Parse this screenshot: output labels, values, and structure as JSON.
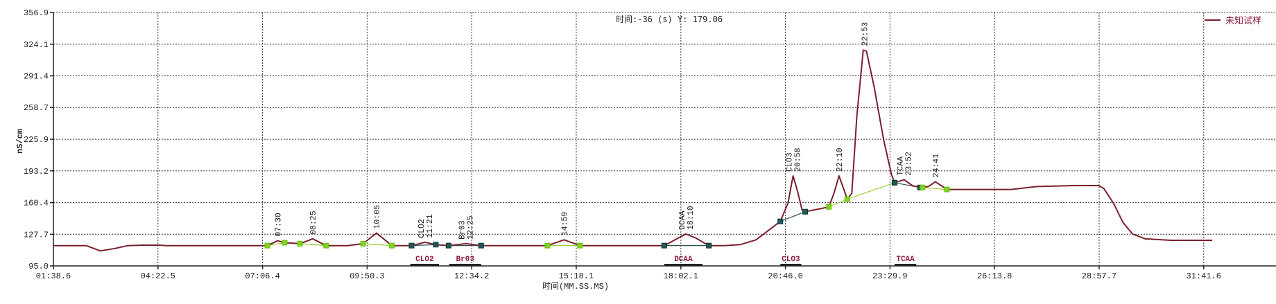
{
  "chart_data": {
    "type": "line",
    "title": "",
    "cursor_readout": "时间:-36 (s) Y: 179.06",
    "xlabel": "时间(MM.SS.MS)",
    "ylabel": "nS/cm",
    "x_unit": "seconds (shown as MM:SS.S)",
    "xlim": [
      98.6,
      2000
    ],
    "ylim": [
      95.0,
      356.9
    ],
    "x_ticks": [
      "01:38.6",
      "04:22.5",
      "07:06.4",
      "09:50.3",
      "12:34.2",
      "15:18.1",
      "18:02.1",
      "20:46.0",
      "23:29.9",
      "26:13.8",
      "28:57.7",
      "31:41.6"
    ],
    "y_ticks": [
      "95.0",
      "127.7",
      "160.4",
      "193.2",
      "225.9",
      "258.7",
      "291.4",
      "324.1",
      "356.9"
    ],
    "grid": true,
    "legend_position": "top-right",
    "series": [
      {
        "name": "未知试样",
        "color": "#7a1f2b",
        "points": [
          [
            98.6,
            116
          ],
          [
            150,
            116
          ],
          [
            172,
            110.5
          ],
          [
            195,
            113
          ],
          [
            215,
            116
          ],
          [
            240,
            116.5
          ],
          [
            265,
            116.5
          ],
          [
            275,
            116
          ],
          [
            434,
            116
          ],
          [
            450,
            121
          ],
          [
            461,
            119
          ],
          [
            475,
            118.5
          ],
          [
            485,
            118
          ],
          [
            505,
            123
          ],
          [
            526,
            116
          ],
          [
            560,
            116
          ],
          [
            584,
            118
          ],
          [
            605,
            129
          ],
          [
            629,
            116
          ],
          [
            660,
            116
          ],
          [
            681,
            119.5
          ],
          [
            698,
            117
          ],
          [
            718,
            116
          ],
          [
            745,
            118
          ],
          [
            769,
            116
          ],
          [
            873,
            116
          ],
          [
            899,
            122
          ],
          [
            924,
            116
          ],
          [
            1056,
            116
          ],
          [
            1073,
            122
          ],
          [
            1090,
            128
          ],
          [
            1105,
            124
          ],
          [
            1126,
            116
          ],
          [
            1150,
            116
          ],
          [
            1175,
            117
          ],
          [
            1200,
            122
          ],
          [
            1220,
            132
          ],
          [
            1238,
            141
          ],
          [
            1250,
            160
          ],
          [
            1258,
            188
          ],
          [
            1265,
            172
          ],
          [
            1272,
            153
          ],
          [
            1277,
            151
          ],
          [
            1300,
            154
          ],
          [
            1314,
            156
          ],
          [
            1322,
            170
          ],
          [
            1330,
            188
          ],
          [
            1337,
            175
          ],
          [
            1343,
            164
          ],
          [
            1350,
            170
          ],
          [
            1358,
            250
          ],
          [
            1368,
            318
          ],
          [
            1373,
            317
          ],
          [
            1385,
            280
          ],
          [
            1400,
            225
          ],
          [
            1412,
            190
          ],
          [
            1417,
            181
          ],
          [
            1432,
            184
          ],
          [
            1445,
            178
          ],
          [
            1457,
            176
          ],
          [
            1470,
            177
          ],
          [
            1481,
            182
          ],
          [
            1499,
            174
          ],
          [
            1600,
            174
          ],
          [
            1640,
            177
          ],
          [
            1700,
            178
          ],
          [
            1737,
            178
          ],
          [
            1745,
            175
          ],
          [
            1760,
            160
          ],
          [
            1775,
            140
          ],
          [
            1790,
            128
          ],
          [
            1810,
            123
          ],
          [
            1850,
            121.5
          ],
          [
            1915,
            121.5
          ]
        ]
      }
    ],
    "baselines": [
      {
        "from": [
          434,
          116
        ],
        "to": [
          461,
          119
        ],
        "marker": "green"
      },
      {
        "from": [
          485,
          118
        ],
        "to": [
          526,
          116
        ],
        "marker": "green"
      },
      {
        "from": [
          584,
          118
        ],
        "to": [
          629,
          116
        ],
        "marker": "green"
      },
      {
        "from": [
          660,
          116
        ],
        "to": [
          698,
          117
        ],
        "marker": "teal"
      },
      {
        "from": [
          718,
          116
        ],
        "to": [
          769,
          116
        ],
        "marker": "teal"
      },
      {
        "from": [
          873,
          116
        ],
        "to": [
          924,
          116
        ],
        "marker": "green"
      },
      {
        "from": [
          1056,
          116
        ],
        "to": [
          1126,
          116
        ],
        "marker": "teal"
      },
      {
        "from": [
          1238,
          141
        ],
        "to": [
          1277,
          151
        ],
        "marker": "teal"
      },
      {
        "from": [
          1314,
          156
        ],
        "to": [
          1343,
          164
        ],
        "marker": "green"
      },
      {
        "from": [
          1343,
          164
        ],
        "to": [
          1417,
          181
        ],
        "marker": "green"
      },
      {
        "from": [
          1417,
          181
        ],
        "to": [
          1457,
          176
        ],
        "marker": "teal"
      },
      {
        "from": [
          1461,
          176
        ],
        "to": [
          1499,
          174
        ],
        "marker": "green"
      }
    ],
    "marker_colors": {
      "green": "#7fd321",
      "teal": "#1f5a5a",
      "baseline_green": "#9acd32",
      "baseline_teal": "#2f4f4f"
    },
    "peak_labels": [
      {
        "t": 450,
        "v": 121,
        "lines": [
          "07:30"
        ]
      },
      {
        "t": 505,
        "v": 123,
        "lines": [
          "08:25"
        ]
      },
      {
        "t": 605,
        "v": 129,
        "lines": [
          "10:05"
        ]
      },
      {
        "t": 681,
        "v": 119.5,
        "lines": [
          "CLO2",
          "11:21"
        ]
      },
      {
        "t": 745,
        "v": 118,
        "lines": [
          "Br03",
          "12:25"
        ]
      },
      {
        "t": 899,
        "v": 122,
        "lines": [
          "14:59"
        ]
      },
      {
        "t": 1090,
        "v": 128,
        "lines": [
          "DCAA",
          "18:10"
        ]
      },
      {
        "t": 1258,
        "v": 188,
        "lines": [
          "CLO3",
          "20:58"
        ]
      },
      {
        "t": 1330,
        "v": 188,
        "lines": [
          "22:10"
        ]
      },
      {
        "t": 1370,
        "v": 318,
        "lines": [
          "22:53"
        ]
      },
      {
        "t": 1432,
        "v": 184,
        "lines": [
          "TCAA",
          "23:52"
        ]
      },
      {
        "t": 1481,
        "v": 182,
        "lines": [
          "24:41"
        ]
      }
    ],
    "components": [
      {
        "name": "CLO2",
        "start": 658,
        "end": 703
      },
      {
        "name": "Br03",
        "start": 719,
        "end": 769
      },
      {
        "name": "DCAA",
        "start": 1056,
        "end": 1116
      },
      {
        "name": "CLO3",
        "start": 1238,
        "end": 1271
      },
      {
        "name": "TCAA",
        "start": 1417,
        "end": 1451
      }
    ]
  }
}
